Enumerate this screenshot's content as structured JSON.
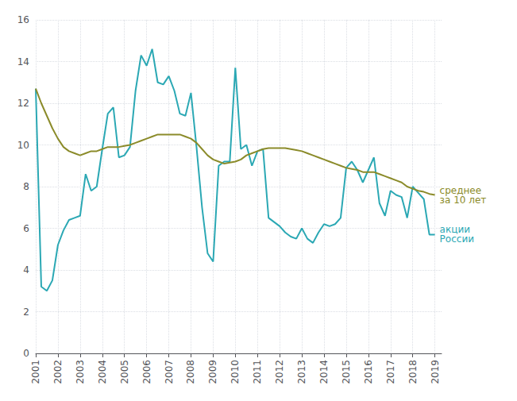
{
  "chart_data": {
    "type": "line",
    "x": [
      2001.0,
      2001.25,
      2001.5,
      2001.75,
      2002.0,
      2002.25,
      2002.5,
      2002.75,
      2003.0,
      2003.25,
      2003.5,
      2003.75,
      2004.0,
      2004.25,
      2004.5,
      2004.75,
      2005.0,
      2005.25,
      2005.5,
      2005.75,
      2006.0,
      2006.25,
      2006.5,
      2006.75,
      2007.0,
      2007.25,
      2007.5,
      2007.75,
      2008.0,
      2008.25,
      2008.5,
      2008.75,
      2009.0,
      2009.25,
      2009.5,
      2009.75,
      2010.0,
      2010.25,
      2010.5,
      2010.75,
      2011.0,
      2011.25,
      2011.5,
      2011.75,
      2012.0,
      2012.25,
      2012.5,
      2012.75,
      2013.0,
      2013.25,
      2013.5,
      2013.75,
      2014.0,
      2014.25,
      2014.5,
      2014.75,
      2015.0,
      2015.25,
      2015.5,
      2015.75,
      2016.0,
      2016.25,
      2016.5,
      2016.75,
      2017.0,
      2017.25,
      2017.5,
      2017.75,
      2018.0,
      2018.25,
      2018.5,
      2018.75,
      2019.0
    ],
    "series": [
      {
        "name": "акции\nРоссии",
        "color": "#2BA8B4",
        "values": [
          12.7,
          3.2,
          3.0,
          3.5,
          5.2,
          5.9,
          6.4,
          6.5,
          6.6,
          8.6,
          7.8,
          8.0,
          9.8,
          11.5,
          11.8,
          9.4,
          9.5,
          9.9,
          12.6,
          14.3,
          13.8,
          14.6,
          13.0,
          12.9,
          13.3,
          12.6,
          11.5,
          11.4,
          12.5,
          9.9,
          7.0,
          4.8,
          4.4,
          9.0,
          9.2,
          9.2,
          13.7,
          9.8,
          10.0,
          9.0,
          9.7,
          9.8,
          6.5,
          6.3,
          6.1,
          5.8,
          5.6,
          5.5,
          6.0,
          5.5,
          5.3,
          5.8,
          6.2,
          6.1,
          6.2,
          6.5,
          8.9,
          9.2,
          8.8,
          8.2,
          8.8,
          9.4,
          7.2,
          6.6,
          7.8,
          7.6,
          7.5,
          6.5,
          8.0,
          7.7,
          7.4,
          5.7,
          5.7
        ]
      },
      {
        "name": "среднее\nза 10 лет",
        "color": "#8B8B2A",
        "values": [
          12.7,
          12.0,
          11.4,
          10.8,
          10.3,
          9.9,
          9.7,
          9.6,
          9.5,
          9.6,
          9.7,
          9.7,
          9.8,
          9.9,
          9.9,
          9.9,
          9.95,
          10.0,
          10.1,
          10.2,
          10.3,
          10.4,
          10.5,
          10.5,
          10.5,
          10.5,
          10.5,
          10.4,
          10.3,
          10.1,
          9.8,
          9.5,
          9.3,
          9.2,
          9.1,
          9.15,
          9.2,
          9.3,
          9.5,
          9.6,
          9.7,
          9.8,
          9.85,
          9.85,
          9.85,
          9.85,
          9.8,
          9.75,
          9.7,
          9.6,
          9.5,
          9.4,
          9.3,
          9.2,
          9.1,
          9.0,
          8.9,
          8.85,
          8.8,
          8.7,
          8.7,
          8.7,
          8.6,
          8.5,
          8.4,
          8.3,
          8.2,
          8.0,
          7.9,
          7.8,
          7.75,
          7.65,
          7.6
        ]
      }
    ],
    "xlim": [
      2001,
      2019.3
    ],
    "xticks": [
      2001,
      2002,
      2003,
      2004,
      2005,
      2006,
      2007,
      2008,
      2009,
      2010,
      2011,
      2012,
      2013,
      2014,
      2015,
      2016,
      2017,
      2018,
      2019
    ],
    "ylim": [
      0,
      16
    ],
    "yticks": [
      0,
      2,
      4,
      6,
      8,
      10,
      12,
      14,
      16
    ],
    "grid": true
  }
}
